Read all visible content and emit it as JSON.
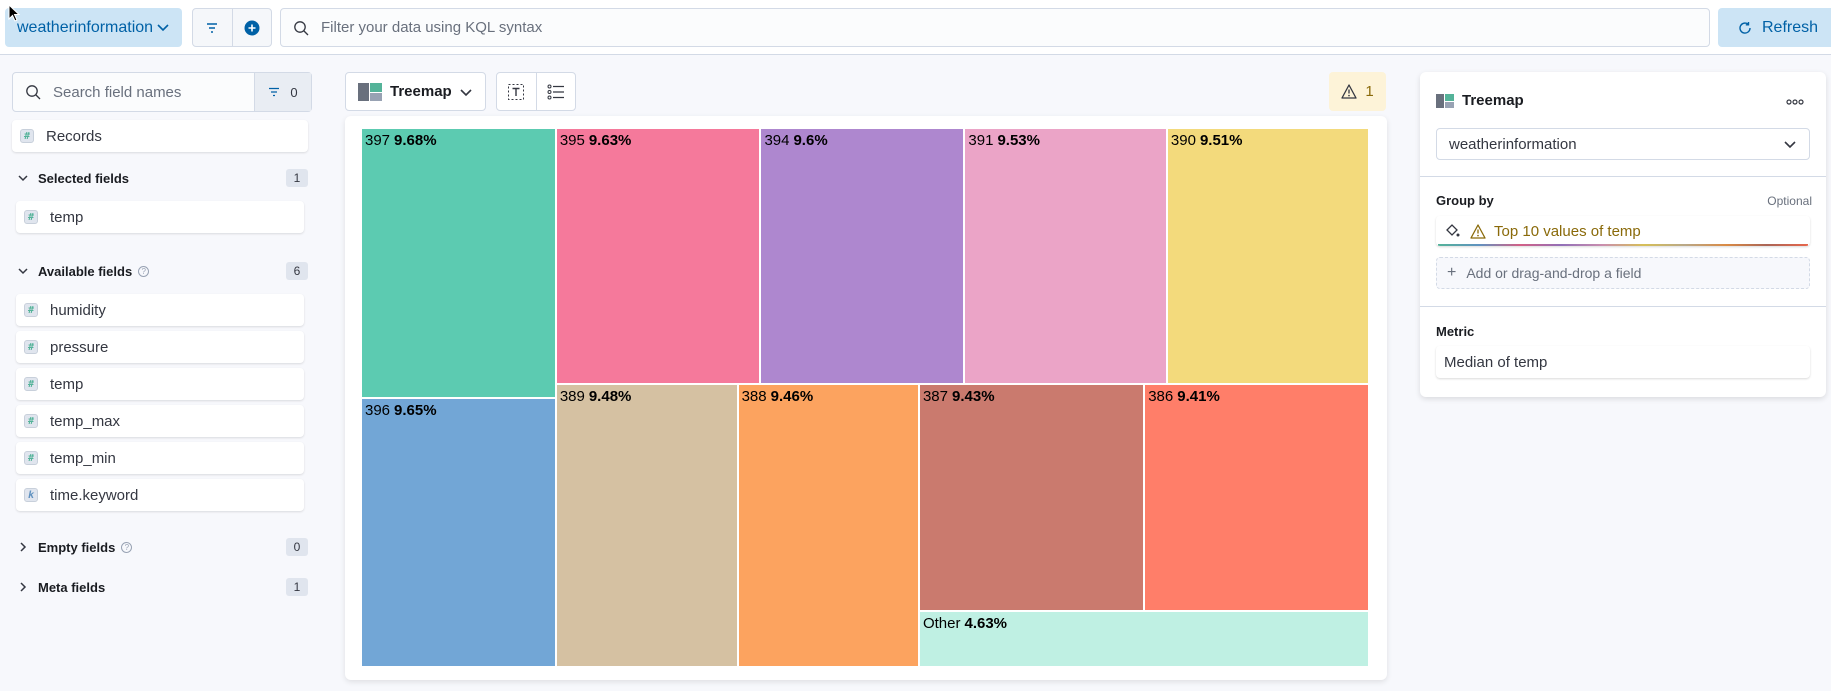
{
  "topbar": {
    "dataview_label": "weatherinformation",
    "query_placeholder": "Filter your data using KQL syntax",
    "refresh_label": "Refresh"
  },
  "field_list": {
    "search_placeholder": "Search field names",
    "filter_count": "0",
    "records_label": "Records",
    "selected": {
      "label": "Selected fields",
      "count": "1",
      "fields": [
        {
          "name": "temp",
          "type": "#"
        }
      ]
    },
    "available": {
      "label": "Available fields",
      "count": "6",
      "fields": [
        {
          "name": "humidity",
          "type": "#"
        },
        {
          "name": "pressure",
          "type": "#"
        },
        {
          "name": "temp",
          "type": "#"
        },
        {
          "name": "temp_max",
          "type": "#"
        },
        {
          "name": "temp_min",
          "type": "#"
        },
        {
          "name": "time.keyword",
          "type": "k"
        }
      ]
    },
    "empty": {
      "label": "Empty fields",
      "count": "0"
    },
    "meta": {
      "label": "Meta fields",
      "count": "1"
    }
  },
  "toolbar": {
    "vis_type": "Treemap",
    "warning_count": "1"
  },
  "chart_data": {
    "type": "treemap",
    "group_by": "Top 10 values of temp",
    "metric": "Median of temp",
    "cells": [
      {
        "name": "397",
        "share": "9.68%",
        "value": 9.68,
        "color": "#5ccbb1"
      },
      {
        "name": "396",
        "share": "9.65%",
        "value": 9.65,
        "color": "#72a6d6"
      },
      {
        "name": "395",
        "share": "9.63%",
        "value": 9.63,
        "color": "#f5799b"
      },
      {
        "name": "394",
        "share": "9.6%",
        "value": 9.6,
        "color": "#ae87cf"
      },
      {
        "name": "391",
        "share": "9.53%",
        "value": 9.53,
        "color": "#eba4c7"
      },
      {
        "name": "390",
        "share": "9.51%",
        "value": 9.51,
        "color": "#f3da7c"
      },
      {
        "name": "389",
        "share": "9.48%",
        "value": 9.48,
        "color": "#d5c1a2"
      },
      {
        "name": "388",
        "share": "9.46%",
        "value": 9.46,
        "color": "#fca35f"
      },
      {
        "name": "387",
        "share": "9.43%",
        "value": 9.43,
        "color": "#ca7a6e"
      },
      {
        "name": "386",
        "share": "9.41%",
        "value": 9.41,
        "color": "#ff7e69"
      },
      {
        "name": "Other",
        "share": "4.63%",
        "value": 4.63,
        "color": "#bff0e3"
      }
    ]
  },
  "config_panel": {
    "title": "Treemap",
    "datasource": "weatherinformation",
    "group_by_label": "Group by",
    "optional_label": "Optional",
    "group_by_value": "Top 10 values of temp",
    "add_field_label": "Add or drag-and-drop a field",
    "metric_label": "Metric",
    "metric_value": "Median of temp"
  }
}
